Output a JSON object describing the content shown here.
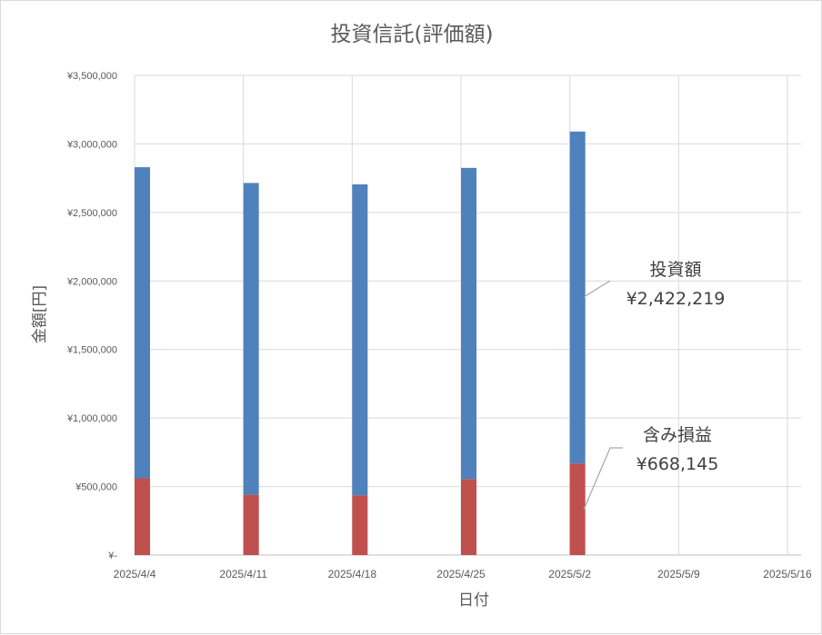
{
  "chart_data": {
    "type": "bar",
    "stacked": true,
    "title": "投資信託(評価額)",
    "xlabel": "日付",
    "ylabel": "金額[円]",
    "ylim": [
      0,
      3500000
    ],
    "y_ticks": [
      "¥-",
      "¥500,000",
      "¥1,000,000",
      "¥1,500,000",
      "¥2,000,000",
      "¥2,500,000",
      "¥3,000,000",
      "¥3,500,000"
    ],
    "x_ticks": [
      "2025/4/4",
      "2025/4/11",
      "2025/4/18",
      "2025/4/25",
      "2025/5/2",
      "2025/5/9",
      "2025/5/16"
    ],
    "categories": [
      "2025/4/4",
      "2025/4/11",
      "2025/4/18",
      "2025/4/25",
      "2025/5/2"
    ],
    "grid": true,
    "series": [
      {
        "name": "含み損益",
        "color": "#c0504d",
        "values": [
          560000,
          440000,
          435000,
          555000,
          668145
        ]
      },
      {
        "name": "投資額",
        "color": "#4f81bd",
        "values": [
          2270000,
          2275000,
          2270000,
          2270000,
          2422219
        ]
      }
    ],
    "annotations": [
      {
        "label": "投資額",
        "value": "¥2,422,219"
      },
      {
        "label": "含み損益",
        "value": "¥668,145"
      }
    ]
  }
}
